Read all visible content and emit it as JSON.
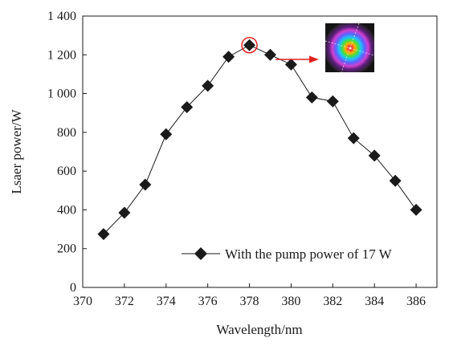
{
  "chart_data": {
    "type": "line",
    "xlabel": "Wavelength/nm",
    "ylabel": "Lsaer power/W",
    "xlim": [
      370,
      387
    ],
    "ylim": [
      0,
      1400
    ],
    "x_ticks": [
      370,
      372,
      374,
      376,
      378,
      380,
      382,
      384,
      386
    ],
    "x_tick_labels": [
      "370",
      "372",
      "374",
      "376",
      "378",
      "380",
      "382",
      "384",
      "386"
    ],
    "y_ticks": [
      0,
      200,
      400,
      600,
      800,
      1000,
      1200,
      1400
    ],
    "y_tick_labels": [
      "0",
      "200",
      "400",
      "600",
      "800",
      "1 000",
      "1 200",
      "1 400"
    ],
    "grid": false,
    "legend_position": "bottom-right",
    "series": [
      {
        "name": "With the pump power of 17 W",
        "marker": "diamond",
        "color": "#1a1a1a",
        "x": [
          371,
          372,
          373,
          374,
          375,
          376,
          377,
          378,
          379,
          380,
          381,
          382,
          383,
          384,
          385,
          386
        ],
        "y": [
          275,
          385,
          530,
          790,
          930,
          1040,
          1190,
          1250,
          1200,
          1150,
          980,
          960,
          770,
          680,
          550,
          400
        ]
      }
    ],
    "annotations": [
      {
        "type": "circle-highlight",
        "x": 378,
        "y": 1250,
        "color": "#e0201e"
      },
      {
        "type": "arrow-to-inset",
        "color": "#e0201e"
      },
      {
        "type": "inset-image",
        "description": "beam-profile"
      }
    ]
  }
}
